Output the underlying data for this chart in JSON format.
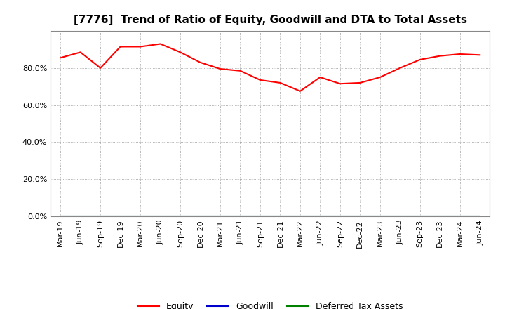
{
  "title": "[7776]  Trend of Ratio of Equity, Goodwill and DTA to Total Assets",
  "x_labels": [
    "Mar-19",
    "Jun-19",
    "Sep-19",
    "Dec-19",
    "Mar-20",
    "Jun-20",
    "Sep-20",
    "Dec-20",
    "Mar-21",
    "Jun-21",
    "Sep-21",
    "Dec-21",
    "Mar-22",
    "Jun-22",
    "Sep-22",
    "Dec-22",
    "Mar-23",
    "Jun-23",
    "Sep-23",
    "Dec-23",
    "Mar-24",
    "Jun-24"
  ],
  "equity": [
    85.5,
    88.5,
    80.0,
    91.5,
    91.5,
    93.0,
    88.5,
    83.0,
    79.5,
    78.5,
    73.5,
    72.0,
    67.5,
    75.0,
    71.5,
    72.0,
    75.0,
    80.0,
    84.5,
    86.5,
    87.5,
    87.0
  ],
  "goodwill": [
    0.0,
    0.0,
    0.0,
    0.0,
    0.0,
    0.0,
    0.0,
    0.0,
    0.0,
    0.0,
    0.0,
    0.0,
    0.0,
    0.0,
    0.0,
    0.0,
    0.0,
    0.0,
    0.0,
    0.0,
    0.0,
    0.0
  ],
  "dta": [
    0.0,
    0.0,
    0.0,
    0.0,
    0.0,
    0.0,
    0.0,
    0.0,
    0.0,
    0.0,
    0.0,
    0.0,
    0.0,
    0.0,
    0.0,
    0.0,
    0.0,
    0.0,
    0.0,
    0.0,
    0.0,
    0.0
  ],
  "equity_color": "#ff0000",
  "goodwill_color": "#0000cd",
  "dta_color": "#008000",
  "ylim": [
    0,
    100
  ],
  "yticks": [
    0,
    20,
    40,
    60,
    80
  ],
  "background_color": "#ffffff",
  "plot_bg_color": "#ffffff",
  "grid_color": "#999999",
  "title_fontsize": 11,
  "tick_fontsize": 8,
  "legend_fontsize": 9
}
